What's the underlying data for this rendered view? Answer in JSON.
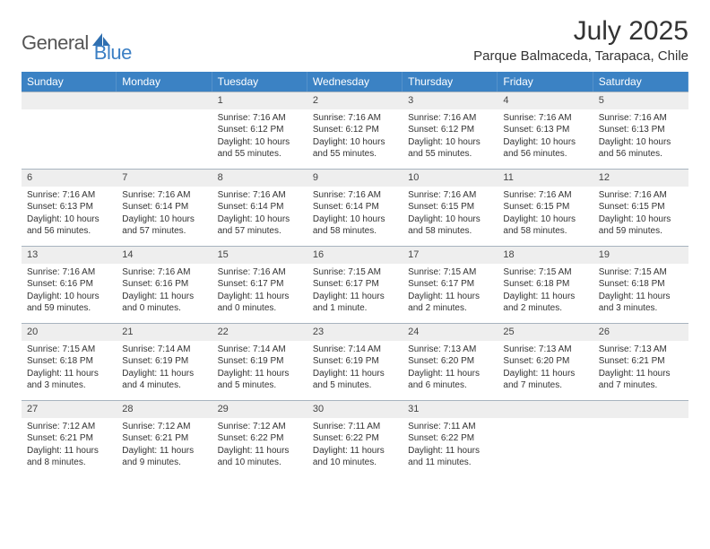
{
  "brand": {
    "text_general": "General",
    "text_blue": "Blue",
    "general_color": "#555555",
    "blue_color": "#3b7fc4",
    "shape_color": "#2f6fb0"
  },
  "header": {
    "month_title": "July 2025",
    "location": "Parque Balmaceda, Tarapaca, Chile"
  },
  "colors": {
    "header_bg": "#3b82c4",
    "header_fg": "#ffffff",
    "daybar_bg": "#eeeeee",
    "daybar_border": "#a8b4bf",
    "text": "#333333",
    "background": "#ffffff"
  },
  "typography": {
    "title_fontsize": 30,
    "location_fontsize": 15,
    "dow_fontsize": 12,
    "daynum_fontsize": 11,
    "body_fontsize": 10
  },
  "days_of_week": [
    "Sunday",
    "Monday",
    "Tuesday",
    "Wednesday",
    "Thursday",
    "Friday",
    "Saturday"
  ],
  "grid": {
    "leading_blanks": 2,
    "cells": [
      {
        "day": "1",
        "sunrise": "Sunrise: 7:16 AM",
        "sunset": "Sunset: 6:12 PM",
        "daylight": "Daylight: 10 hours and 55 minutes."
      },
      {
        "day": "2",
        "sunrise": "Sunrise: 7:16 AM",
        "sunset": "Sunset: 6:12 PM",
        "daylight": "Daylight: 10 hours and 55 minutes."
      },
      {
        "day": "3",
        "sunrise": "Sunrise: 7:16 AM",
        "sunset": "Sunset: 6:12 PM",
        "daylight": "Daylight: 10 hours and 55 minutes."
      },
      {
        "day": "4",
        "sunrise": "Sunrise: 7:16 AM",
        "sunset": "Sunset: 6:13 PM",
        "daylight": "Daylight: 10 hours and 56 minutes."
      },
      {
        "day": "5",
        "sunrise": "Sunrise: 7:16 AM",
        "sunset": "Sunset: 6:13 PM",
        "daylight": "Daylight: 10 hours and 56 minutes."
      },
      {
        "day": "6",
        "sunrise": "Sunrise: 7:16 AM",
        "sunset": "Sunset: 6:13 PM",
        "daylight": "Daylight: 10 hours and 56 minutes."
      },
      {
        "day": "7",
        "sunrise": "Sunrise: 7:16 AM",
        "sunset": "Sunset: 6:14 PM",
        "daylight": "Daylight: 10 hours and 57 minutes."
      },
      {
        "day": "8",
        "sunrise": "Sunrise: 7:16 AM",
        "sunset": "Sunset: 6:14 PM",
        "daylight": "Daylight: 10 hours and 57 minutes."
      },
      {
        "day": "9",
        "sunrise": "Sunrise: 7:16 AM",
        "sunset": "Sunset: 6:14 PM",
        "daylight": "Daylight: 10 hours and 58 minutes."
      },
      {
        "day": "10",
        "sunrise": "Sunrise: 7:16 AM",
        "sunset": "Sunset: 6:15 PM",
        "daylight": "Daylight: 10 hours and 58 minutes."
      },
      {
        "day": "11",
        "sunrise": "Sunrise: 7:16 AM",
        "sunset": "Sunset: 6:15 PM",
        "daylight": "Daylight: 10 hours and 58 minutes."
      },
      {
        "day": "12",
        "sunrise": "Sunrise: 7:16 AM",
        "sunset": "Sunset: 6:15 PM",
        "daylight": "Daylight: 10 hours and 59 minutes."
      },
      {
        "day": "13",
        "sunrise": "Sunrise: 7:16 AM",
        "sunset": "Sunset: 6:16 PM",
        "daylight": "Daylight: 10 hours and 59 minutes."
      },
      {
        "day": "14",
        "sunrise": "Sunrise: 7:16 AM",
        "sunset": "Sunset: 6:16 PM",
        "daylight": "Daylight: 11 hours and 0 minutes."
      },
      {
        "day": "15",
        "sunrise": "Sunrise: 7:16 AM",
        "sunset": "Sunset: 6:17 PM",
        "daylight": "Daylight: 11 hours and 0 minutes."
      },
      {
        "day": "16",
        "sunrise": "Sunrise: 7:15 AM",
        "sunset": "Sunset: 6:17 PM",
        "daylight": "Daylight: 11 hours and 1 minute."
      },
      {
        "day": "17",
        "sunrise": "Sunrise: 7:15 AM",
        "sunset": "Sunset: 6:17 PM",
        "daylight": "Daylight: 11 hours and 2 minutes."
      },
      {
        "day": "18",
        "sunrise": "Sunrise: 7:15 AM",
        "sunset": "Sunset: 6:18 PM",
        "daylight": "Daylight: 11 hours and 2 minutes."
      },
      {
        "day": "19",
        "sunrise": "Sunrise: 7:15 AM",
        "sunset": "Sunset: 6:18 PM",
        "daylight": "Daylight: 11 hours and 3 minutes."
      },
      {
        "day": "20",
        "sunrise": "Sunrise: 7:15 AM",
        "sunset": "Sunset: 6:18 PM",
        "daylight": "Daylight: 11 hours and 3 minutes."
      },
      {
        "day": "21",
        "sunrise": "Sunrise: 7:14 AM",
        "sunset": "Sunset: 6:19 PM",
        "daylight": "Daylight: 11 hours and 4 minutes."
      },
      {
        "day": "22",
        "sunrise": "Sunrise: 7:14 AM",
        "sunset": "Sunset: 6:19 PM",
        "daylight": "Daylight: 11 hours and 5 minutes."
      },
      {
        "day": "23",
        "sunrise": "Sunrise: 7:14 AM",
        "sunset": "Sunset: 6:19 PM",
        "daylight": "Daylight: 11 hours and 5 minutes."
      },
      {
        "day": "24",
        "sunrise": "Sunrise: 7:13 AM",
        "sunset": "Sunset: 6:20 PM",
        "daylight": "Daylight: 11 hours and 6 minutes."
      },
      {
        "day": "25",
        "sunrise": "Sunrise: 7:13 AM",
        "sunset": "Sunset: 6:20 PM",
        "daylight": "Daylight: 11 hours and 7 minutes."
      },
      {
        "day": "26",
        "sunrise": "Sunrise: 7:13 AM",
        "sunset": "Sunset: 6:21 PM",
        "daylight": "Daylight: 11 hours and 7 minutes."
      },
      {
        "day": "27",
        "sunrise": "Sunrise: 7:12 AM",
        "sunset": "Sunset: 6:21 PM",
        "daylight": "Daylight: 11 hours and 8 minutes."
      },
      {
        "day": "28",
        "sunrise": "Sunrise: 7:12 AM",
        "sunset": "Sunset: 6:21 PM",
        "daylight": "Daylight: 11 hours and 9 minutes."
      },
      {
        "day": "29",
        "sunrise": "Sunrise: 7:12 AM",
        "sunset": "Sunset: 6:22 PM",
        "daylight": "Daylight: 11 hours and 10 minutes."
      },
      {
        "day": "30",
        "sunrise": "Sunrise: 7:11 AM",
        "sunset": "Sunset: 6:22 PM",
        "daylight": "Daylight: 11 hours and 10 minutes."
      },
      {
        "day": "31",
        "sunrise": "Sunrise: 7:11 AM",
        "sunset": "Sunset: 6:22 PM",
        "daylight": "Daylight: 11 hours and 11 minutes."
      }
    ],
    "trailing_blanks": 2
  }
}
